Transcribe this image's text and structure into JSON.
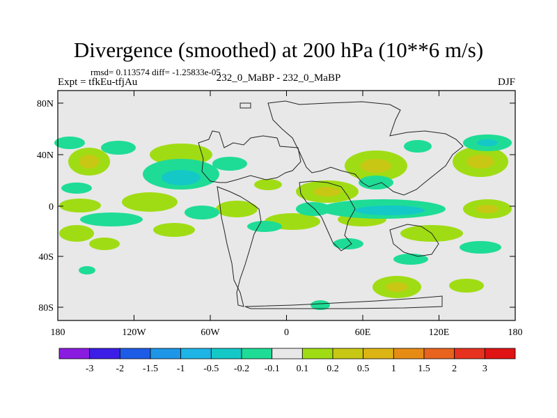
{
  "header": {
    "title": "Divergence (smoothed) at 200 hPa (10**6 m/s)",
    "stats": "rmsd= 0.113574 diff= -1.25833e-05",
    "left_label": "Expt = tfkEu-tfjAu",
    "center_label": "232_0_MaBP - 232_0_MaBP",
    "right_label": "DJF"
  },
  "map": {
    "y_ticks": [
      "80N",
      "40N",
      "0",
      "40S",
      "80S"
    ],
    "x_ticks": [
      "180",
      "120W",
      "60W",
      "0",
      "60E",
      "120E",
      "180"
    ],
    "background_color": "#e8e8e8"
  },
  "colorbar": {
    "labels": [
      "-3",
      "-2",
      "-1.5",
      "-1",
      "-0.5",
      "-0.2",
      "-0.1",
      "0.1",
      "0.2",
      "0.5",
      "1",
      "1.5",
      "2",
      "3"
    ],
    "colors": [
      "#8a1be0",
      "#3c1ee6",
      "#1e5ce8",
      "#1e96e8",
      "#1eb4e6",
      "#14c8c8",
      "#1edc96",
      "#e8e8e8",
      "#a0dc14",
      "#c8c814",
      "#dcb414",
      "#e68c14",
      "#e8641e",
      "#e6321e",
      "#e01414"
    ]
  }
}
